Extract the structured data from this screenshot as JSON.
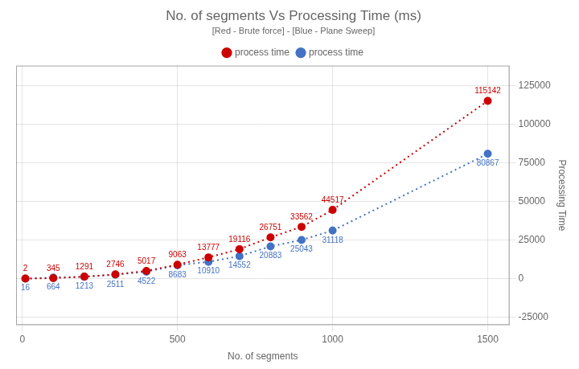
{
  "chart_data": {
    "type": "line",
    "title": "No. of segments Vs Processing Time (ms)",
    "subtitle": "[Red - Brute force] - [Blue - Plane Sweep]",
    "x_label": "No. of segments",
    "y_label": "Processing Time",
    "x": [
      10,
      100,
      200,
      300,
      400,
      500,
      600,
      700,
      800,
      900,
      1000,
      1500
    ],
    "series": [
      {
        "name": "process time",
        "color": "#CC0000",
        "line_style": "dotted",
        "marker": "circle",
        "values": [
          2,
          345,
          1291,
          2746,
          5017,
          9063,
          13777,
          19116,
          26751,
          33562,
          44517,
          115142
        ]
      },
      {
        "name": "process time",
        "color": "#4472C4",
        "line_style": "dotted",
        "marker": "circle",
        "values": [
          16,
          664,
          1213,
          2511,
          4522,
          8683,
          10910,
          14552,
          20883,
          25043,
          31118,
          80867
        ]
      }
    ],
    "xlim": [
      -20,
      1570
    ],
    "xticks": [
      0,
      500,
      1000,
      1500
    ],
    "ylim": [
      -30000,
      138000
    ],
    "yticks": [
      -25000,
      0,
      25000,
      50000,
      75000,
      100000,
      125000
    ],
    "grid": true,
    "legend": "top",
    "data_labels": true
  }
}
